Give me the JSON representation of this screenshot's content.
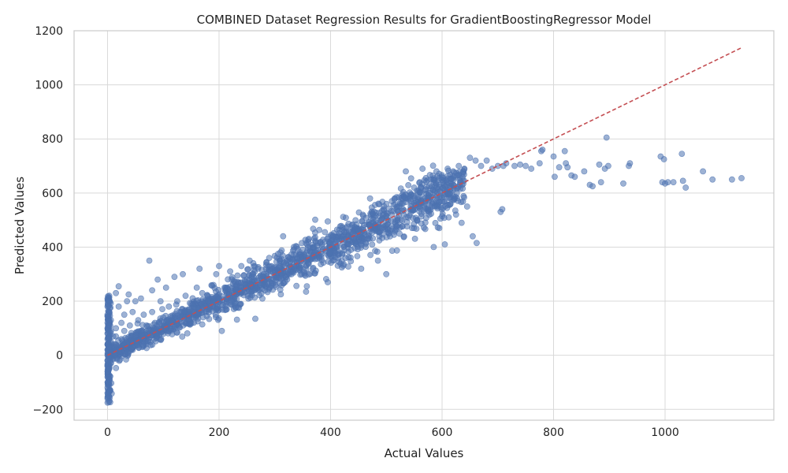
{
  "chart_data": {
    "type": "scatter",
    "title": "COMBINED Dataset Regression Results for GradientBoostingRegressor Model",
    "xlabel": "Actual Values",
    "ylabel": "Predicted Values",
    "xlim": [
      -60,
      1195
    ],
    "ylim": [
      -240,
      1200
    ],
    "xticks": [
      0,
      200,
      400,
      600,
      800,
      1000
    ],
    "yticks": [
      -200,
      0,
      200,
      400,
      600,
      800,
      1000,
      1200
    ],
    "xtick_labels": [
      "0",
      "200",
      "400",
      "600",
      "800",
      "1000"
    ],
    "ytick_labels": [
      "−200",
      "0",
      "200",
      "400",
      "600",
      "800",
      "1000",
      "1200"
    ],
    "grid": true,
    "legend": "none",
    "colors": {
      "points": "#4c72b0",
      "reference_line": "#c44e52",
      "grid": "#d9d9d9",
      "spine": "#cccccc"
    },
    "reference_line": {
      "style": "dashed",
      "from": [
        0,
        0
      ],
      "to": [
        1137,
        1137
      ]
    },
    "series": [
      {
        "points": [
          [
            0,
            -175
          ],
          [
            0,
            -160
          ],
          [
            0,
            -140
          ],
          [
            0,
            -120
          ],
          [
            0,
            -100
          ],
          [
            0,
            -80
          ],
          [
            0,
            -60
          ],
          [
            0,
            -40
          ],
          [
            0,
            -20
          ],
          [
            0,
            0
          ],
          [
            0,
            20
          ],
          [
            0,
            40
          ],
          [
            0,
            60
          ],
          [
            0,
            80
          ],
          [
            0,
            100
          ],
          [
            0,
            120
          ],
          [
            0,
            150
          ],
          [
            0,
            180
          ],
          [
            0,
            210
          ],
          [
            3,
            -130
          ],
          [
            3,
            -90
          ],
          [
            3,
            -50
          ],
          [
            3,
            -10
          ],
          [
            3,
            30
          ],
          [
            3,
            70
          ],
          [
            3,
            110
          ],
          [
            3,
            160
          ],
          [
            3,
            220
          ],
          [
            6,
            -30
          ],
          [
            6,
            10
          ],
          [
            6,
            50
          ],
          [
            6,
            90
          ],
          [
            6,
            130
          ],
          [
            15,
            40
          ],
          [
            15,
            70
          ],
          [
            15,
            100
          ],
          [
            15,
            230
          ],
          [
            20,
            255
          ],
          [
            20,
            180
          ],
          [
            25,
            60
          ],
          [
            25,
            120
          ],
          [
            30,
            40
          ],
          [
            30,
            90
          ],
          [
            30,
            150
          ],
          [
            35,
            200
          ],
          [
            38,
            225
          ],
          [
            40,
            110
          ],
          [
            45,
            30
          ],
          [
            45,
            160
          ],
          [
            50,
            70
          ],
          [
            50,
            200
          ],
          [
            55,
            130
          ],
          [
            60,
            90
          ],
          [
            60,
            210
          ],
          [
            65,
            150
          ],
          [
            70,
            110
          ],
          [
            75,
            350
          ],
          [
            80,
            160
          ],
          [
            80,
            240
          ],
          [
            85,
            120
          ],
          [
            90,
            280
          ],
          [
            95,
            200
          ],
          [
            100,
            140
          ],
          [
            105,
            250
          ],
          [
            110,
            180
          ],
          [
            115,
            130
          ],
          [
            120,
            290
          ],
          [
            125,
            200
          ],
          [
            130,
            160
          ],
          [
            135,
            300
          ],
          [
            140,
            220
          ],
          [
            150,
            190
          ],
          [
            160,
            250
          ],
          [
            165,
            320
          ],
          [
            170,
            230
          ],
          [
            180,
            200
          ],
          [
            190,
            260
          ],
          [
            195,
            300
          ],
          [
            200,
            210
          ],
          [
            200,
            330
          ],
          [
            205,
            90
          ],
          [
            210,
            250
          ],
          [
            220,
            310
          ],
          [
            230,
            270
          ],
          [
            240,
            330
          ],
          [
            250,
            280
          ],
          [
            255,
            350
          ],
          [
            260,
            300
          ],
          [
            265,
            135
          ],
          [
            270,
            320
          ],
          [
            280,
            300
          ],
          [
            290,
            360
          ],
          [
            300,
            310
          ],
          [
            310,
            380
          ],
          [
            315,
            440
          ],
          [
            320,
            340
          ],
          [
            330,
            300
          ],
          [
            340,
            360
          ],
          [
            350,
            390
          ],
          [
            360,
            340
          ],
          [
            370,
            400
          ],
          [
            380,
            360
          ],
          [
            390,
            420
          ],
          [
            395,
            495
          ],
          [
            395,
            270
          ],
          [
            400,
            380
          ],
          [
            410,
            400
          ],
          [
            420,
            430
          ],
          [
            430,
            410
          ],
          [
            440,
            450
          ],
          [
            450,
            460
          ],
          [
            455,
            320
          ],
          [
            460,
            430
          ],
          [
            470,
            480
          ],
          [
            475,
            525
          ],
          [
            480,
            470
          ],
          [
            485,
            350
          ],
          [
            490,
            500
          ],
          [
            495,
            540
          ],
          [
            500,
            480
          ],
          [
            500,
            300
          ],
          [
            505,
            450
          ],
          [
            510,
            520
          ],
          [
            515,
            580
          ],
          [
            520,
            500
          ],
          [
            525,
            560
          ],
          [
            530,
            540
          ],
          [
            535,
            680
          ],
          [
            540,
            590
          ],
          [
            545,
            560
          ],
          [
            550,
            620
          ],
          [
            555,
            500
          ],
          [
            560,
            640
          ],
          [
            565,
            690
          ],
          [
            570,
            610
          ],
          [
            575,
            540
          ],
          [
            580,
            650
          ],
          [
            585,
            400
          ],
          [
            590,
            680
          ],
          [
            595,
            470
          ],
          [
            600,
            660
          ],
          [
            605,
            410
          ],
          [
            610,
            690
          ],
          [
            615,
            560
          ],
          [
            620,
            680
          ],
          [
            625,
            520
          ],
          [
            630,
            700
          ],
          [
            635,
            490
          ],
          [
            640,
            690
          ],
          [
            645,
            550
          ],
          [
            650,
            730
          ],
          [
            655,
            440
          ],
          [
            660,
            720
          ],
          [
            662,
            415
          ],
          [
            670,
            700
          ],
          [
            680,
            720
          ],
          [
            690,
            690
          ],
          [
            700,
            700
          ],
          [
            705,
            530
          ],
          [
            708,
            540
          ],
          [
            710,
            700
          ],
          [
            715,
            710
          ],
          [
            730,
            700
          ],
          [
            740,
            705
          ],
          [
            750,
            700
          ],
          [
            760,
            690
          ],
          [
            775,
            710
          ],
          [
            778,
            755
          ],
          [
            780,
            760
          ],
          [
            800,
            735
          ],
          [
            802,
            660
          ],
          [
            810,
            695
          ],
          [
            820,
            755
          ],
          [
            822,
            710
          ],
          [
            825,
            695
          ],
          [
            832,
            665
          ],
          [
            838,
            660
          ],
          [
            855,
            680
          ],
          [
            865,
            630
          ],
          [
            870,
            625
          ],
          [
            882,
            705
          ],
          [
            885,
            640
          ],
          [
            892,
            690
          ],
          [
            895,
            805
          ],
          [
            898,
            700
          ],
          [
            925,
            635
          ],
          [
            935,
            700
          ],
          [
            937,
            710
          ],
          [
            992,
            735
          ],
          [
            995,
            640
          ],
          [
            998,
            725
          ],
          [
            1000,
            635
          ],
          [
            1005,
            640
          ],
          [
            1015,
            640
          ],
          [
            1030,
            745
          ],
          [
            1032,
            645
          ],
          [
            1037,
            620
          ],
          [
            1068,
            680
          ],
          [
            1085,
            650
          ],
          [
            1120,
            650
          ],
          [
            1137,
            655
          ]
        ]
      }
    ]
  }
}
